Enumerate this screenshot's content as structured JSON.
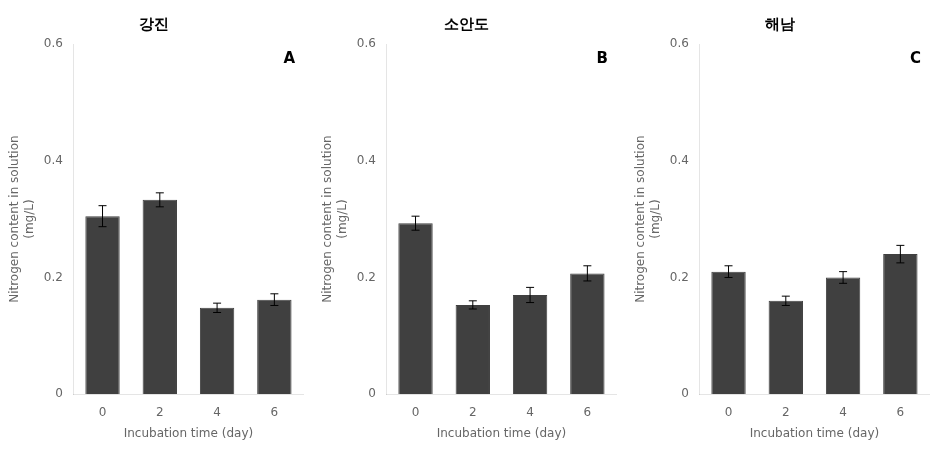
{
  "chart_data": [
    {
      "type": "bar",
      "title": "강진",
      "annotations": [
        "A"
      ],
      "categories": [
        0,
        2,
        4,
        6
      ],
      "values": [
        0.305,
        0.333,
        0.148,
        0.162
      ],
      "errors": [
        0.018,
        0.012,
        0.008,
        0.01
      ],
      "color": "#404040",
      "xlabel": "Incubation time (day)",
      "ylabel": "Nitrogen content in solution\n(mg/L)",
      "ylim": [
        0,
        0.6
      ],
      "yticks": [
        0,
        0.2,
        0.4,
        0.6
      ],
      "grid": false
    },
    {
      "type": "bar",
      "title": "소안도",
      "annotations": [
        "B"
      ],
      "categories": [
        0,
        2,
        4,
        6
      ],
      "values": [
        0.293,
        0.153,
        0.17,
        0.207
      ],
      "errors": [
        0.012,
        0.007,
        0.013,
        0.013
      ],
      "color": "#404040",
      "xlabel": "Incubation time (day)",
      "ylabel": "Nitrogen content in solution\n(mg/L)",
      "ylim": [
        0,
        0.6
      ],
      "yticks": [
        0,
        0.2,
        0.4,
        0.6
      ],
      "grid": false
    },
    {
      "type": "bar",
      "title": "해남",
      "annotations": [
        "C"
      ],
      "categories": [
        0,
        2,
        4,
        6
      ],
      "values": [
        0.21,
        0.16,
        0.2,
        0.24
      ],
      "errors": [
        0.01,
        0.008,
        0.01,
        0.015
      ],
      "color": "#404040",
      "xlabel": "Incubation time (day)",
      "ylabel": "Nitrogen content in solution\n(mg/L)",
      "ylim": [
        0,
        0.6
      ],
      "yticks": [
        0,
        0.2,
        0.4,
        0.6
      ],
      "grid": false
    }
  ]
}
